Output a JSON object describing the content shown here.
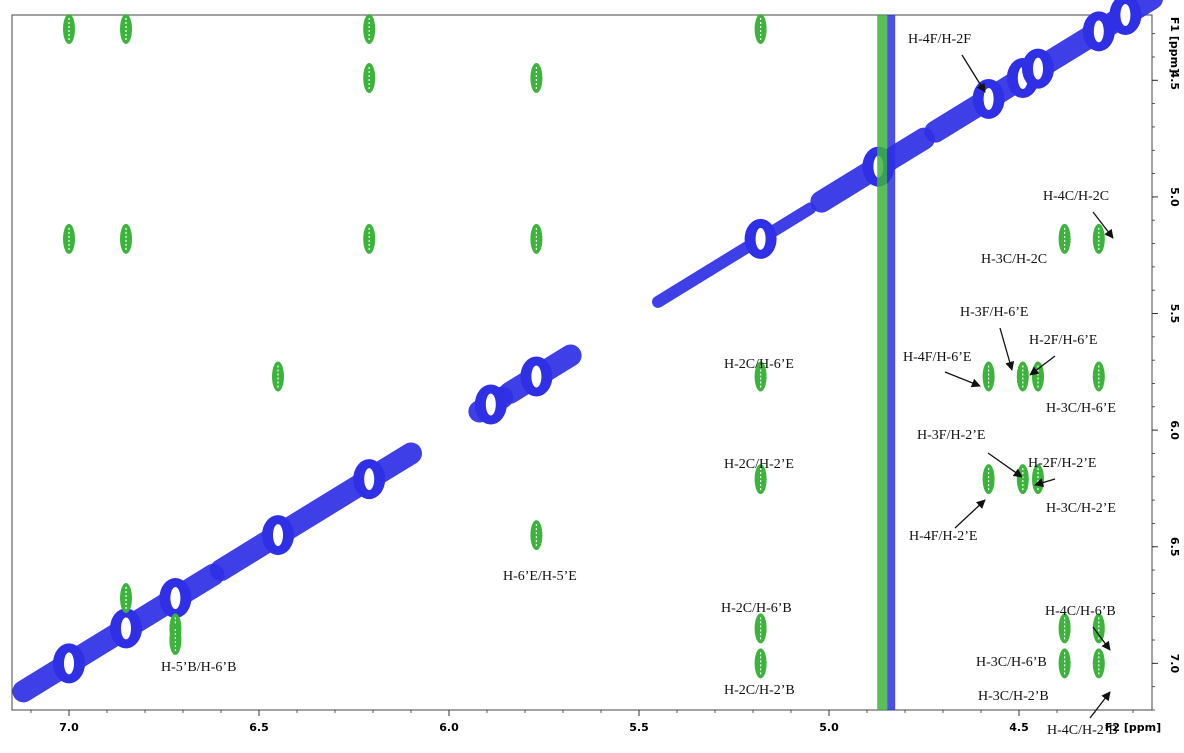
{
  "chart_data": {
    "type": "scatter",
    "plot_kind": "2D NMR correlation contour plot",
    "xlabel": "F2 [ppm]",
    "ylabel": "F1 [ppm]",
    "xlim": [
      7.15,
      4.15
    ],
    "ylim": [
      4.22,
      7.2
    ],
    "x_ticks": [
      "7.0",
      "6.5",
      "6.0",
      "5.5",
      "5.0",
      "4.5"
    ],
    "y_ticks": [
      "4.5",
      "5.0",
      "5.5",
      "6.0",
      "6.5",
      "7.0"
    ],
    "x_tick_values": [
      7.0,
      6.5,
      6.0,
      5.5,
      5.0,
      4.5
    ],
    "y_tick_values": [
      4.5,
      5.0,
      5.5,
      6.0,
      6.5,
      7.0
    ],
    "colors": {
      "diagonal": "#2f2fe6",
      "cross_peak": "#3cb43c",
      "text": "#111111"
    },
    "solvent_line_ppm": 4.86,
    "diagonal_peaks": [
      {
        "x": 7.0,
        "y": 7.0
      },
      {
        "x": 6.85,
        "y": 6.85
      },
      {
        "x": 6.72,
        "y": 6.72
      },
      {
        "x": 6.45,
        "y": 6.45
      },
      {
        "x": 6.21,
        "y": 6.21
      },
      {
        "x": 5.89,
        "y": 5.89
      },
      {
        "x": 5.77,
        "y": 5.77
      },
      {
        "x": 5.18,
        "y": 5.18
      },
      {
        "x": 4.87,
        "y": 4.87
      },
      {
        "x": 4.58,
        "y": 4.58
      },
      {
        "x": 4.49,
        "y": 4.49
      },
      {
        "x": 4.45,
        "y": 4.45
      },
      {
        "x": 4.29,
        "y": 4.29
      },
      {
        "x": 4.22,
        "y": 4.22
      }
    ],
    "cross_peaks": [
      {
        "x": 7.0,
        "y": 4.28
      },
      {
        "x": 6.85,
        "y": 4.28
      },
      {
        "x": 6.21,
        "y": 4.28
      },
      {
        "x": 6.21,
        "y": 4.49
      },
      {
        "x": 5.77,
        "y": 4.49
      },
      {
        "x": 5.18,
        "y": 4.28
      },
      {
        "x": 7.0,
        "y": 5.18
      },
      {
        "x": 6.85,
        "y": 5.18
      },
      {
        "x": 6.21,
        "y": 5.18
      },
      {
        "x": 5.77,
        "y": 5.18
      },
      {
        "x": 6.45,
        "y": 5.77
      },
      {
        "x": 5.77,
        "y": 6.45
      },
      {
        "x": 5.18,
        "y": 5.77
      },
      {
        "x": 5.18,
        "y": 6.21
      },
      {
        "x": 5.18,
        "y": 6.85
      },
      {
        "x": 5.18,
        "y": 7.0
      },
      {
        "x": 4.38,
        "y": 5.18
      },
      {
        "x": 4.29,
        "y": 5.18
      },
      {
        "x": 4.58,
        "y": 5.77
      },
      {
        "x": 4.49,
        "y": 5.77
      },
      {
        "x": 4.45,
        "y": 5.77
      },
      {
        "x": 4.29,
        "y": 5.77
      },
      {
        "x": 4.58,
        "y": 6.21
      },
      {
        "x": 4.49,
        "y": 6.21
      },
      {
        "x": 4.45,
        "y": 6.21
      },
      {
        "x": 4.38,
        "y": 6.85
      },
      {
        "x": 4.29,
        "y": 6.85
      },
      {
        "x": 4.38,
        "y": 7.0
      },
      {
        "x": 4.29,
        "y": 7.0
      },
      {
        "x": 6.85,
        "y": 6.72
      },
      {
        "x": 6.72,
        "y": 6.85
      },
      {
        "x": 6.72,
        "y": 6.9
      }
    ],
    "annotations": [
      "H-4F/H-2F",
      "H-4C/H-2C",
      "H-3C/H-2C",
      "H-3F/H-6’E",
      "H-2F/H-6’E",
      "H-4F/H-6’E",
      "H-2C/H-6’E",
      "H-3C/H-6’E",
      "H-3F/H-2’E",
      "H-2F/H-2’E",
      "H-2C/H-2’E",
      "H-3C/H-2’E",
      "H-4F/H-2’E",
      "H-6’E/H-5’E",
      "H-2C/H-6’B",
      "H-4C/H-6’B",
      "H-3C/H-6’B",
      "H-5’B/H-6’B",
      "H-3C/H-2’B",
      "H-2C/H-2’B",
      "H-4C/H-2’B"
    ]
  }
}
